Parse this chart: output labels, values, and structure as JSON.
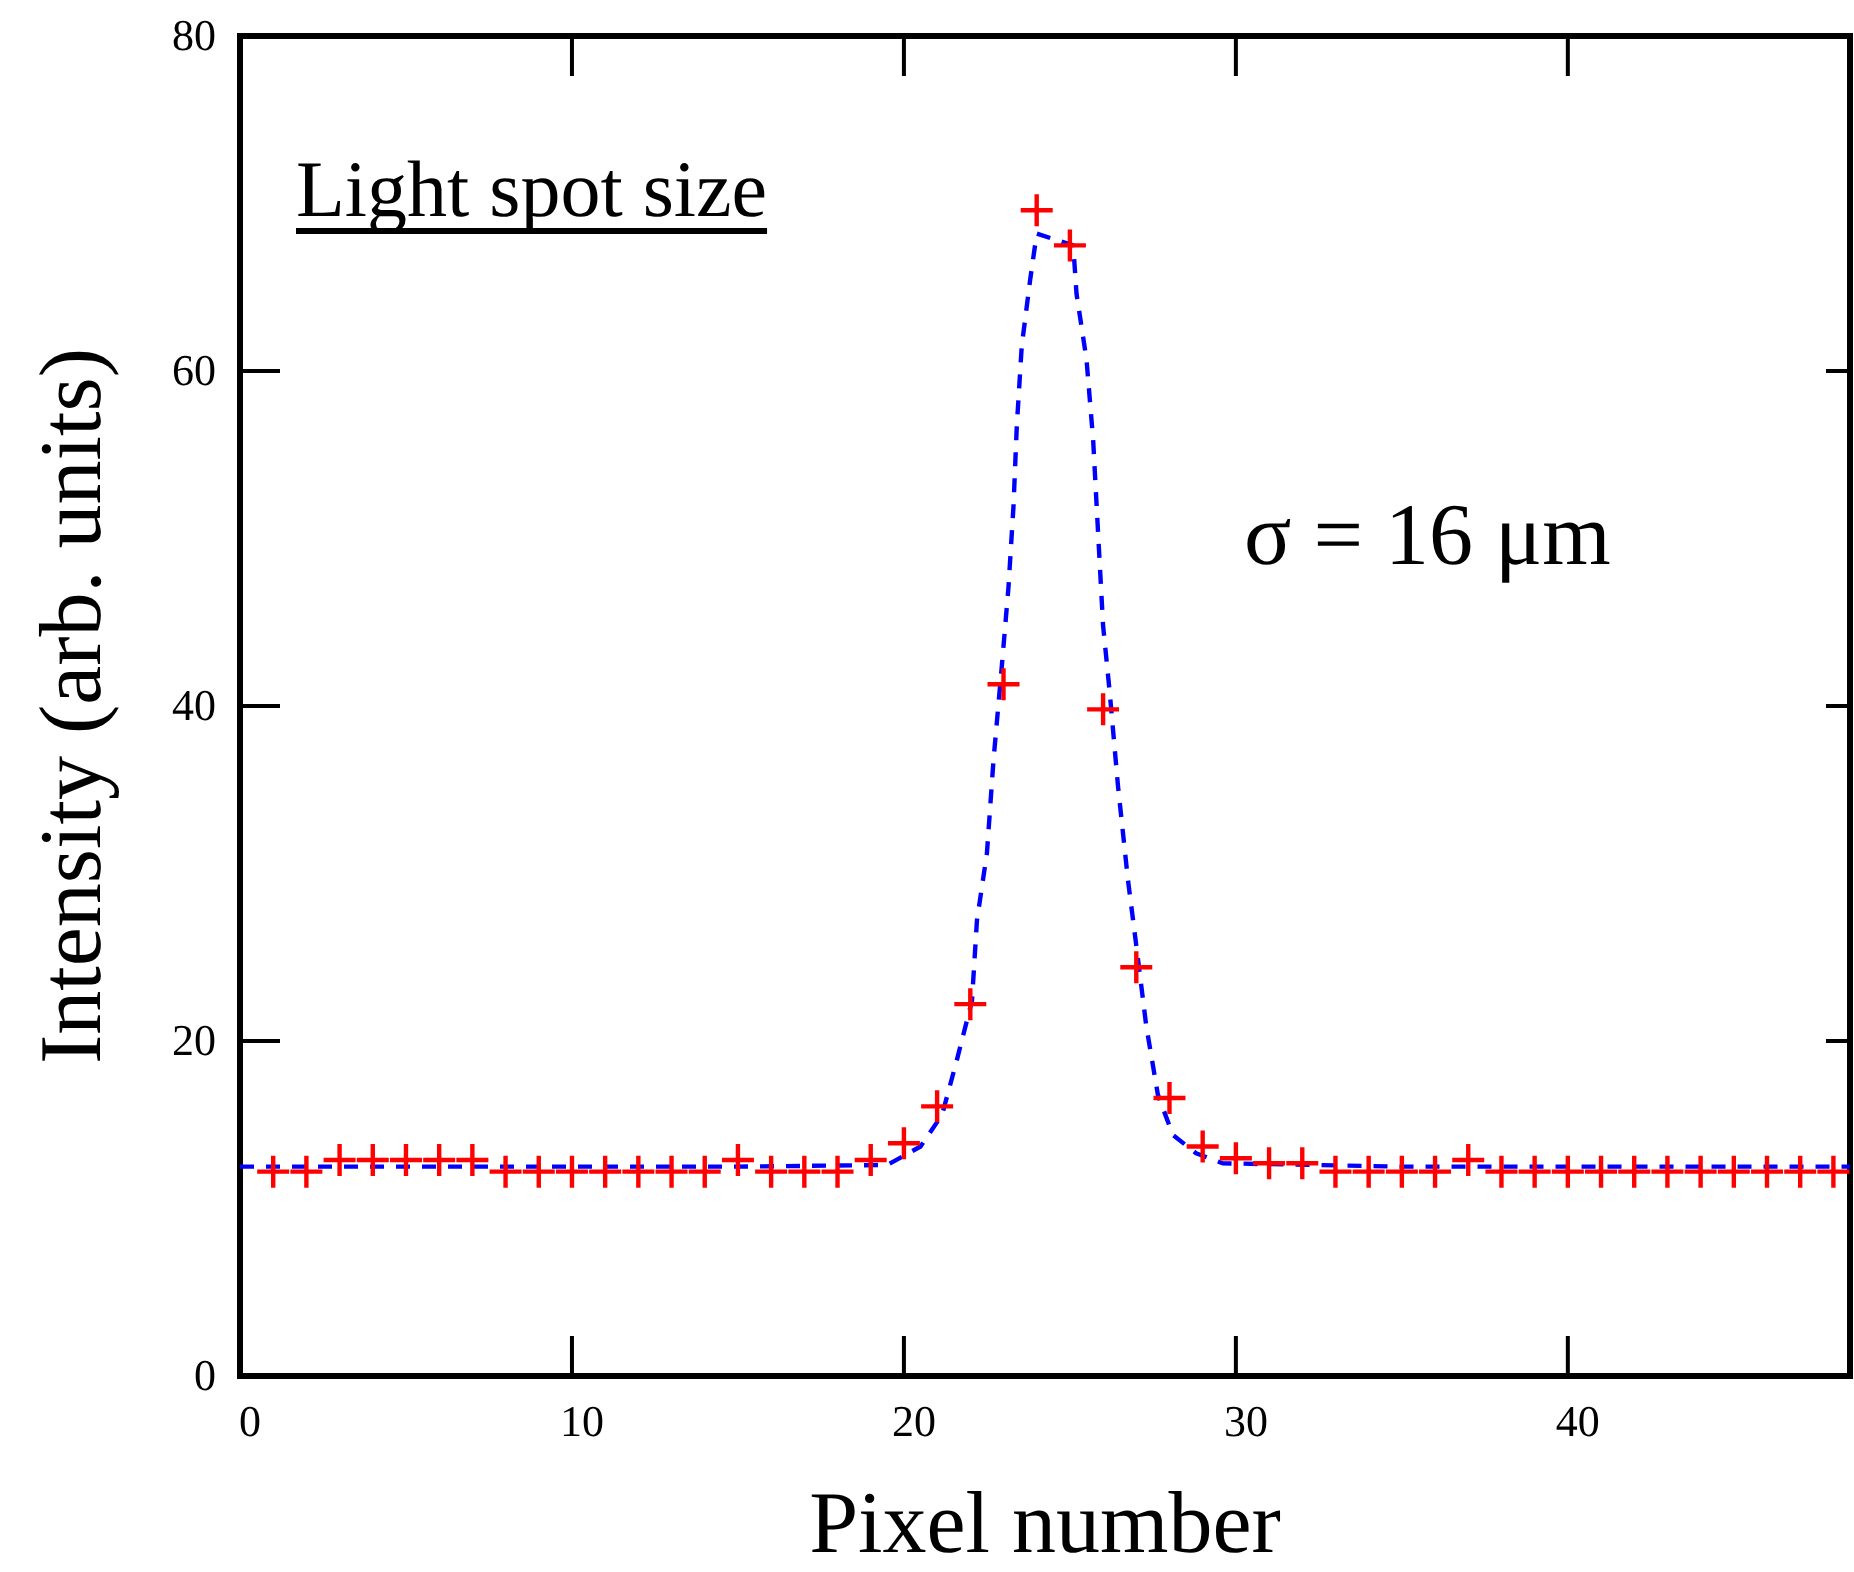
{
  "chart_data": {
    "type": "scatter",
    "title": "Light spot size",
    "xlabel": "Pixel number",
    "ylabel": "Intensity (arb. units)",
    "annotations": [
      "σ = 16 μm"
    ],
    "xlim": [
      0,
      48.5
    ],
    "xticks": [
      0,
      10,
      20,
      30,
      40
    ],
    "ylim": [
      0,
      80
    ],
    "yticks": [
      0,
      20,
      40,
      60,
      80
    ],
    "series": [
      {
        "type": "line",
        "color": "#0000ff",
        "line_style": "dashed",
        "marker": "none",
        "x": [
          0,
          5,
          10,
          15,
          19.5,
          20.5,
          21.15,
          21.6,
          22.05,
          22.2,
          22.5,
          22.7,
          22.95,
          23.15,
          23.3,
          23.4,
          23.55,
          23.8,
          24.0,
          25.1,
          25.2,
          25.5,
          25.7,
          25.85,
          26.0,
          26.2,
          26.45,
          26.75,
          27.0,
          27.3,
          27.65,
          28.1,
          28.8,
          29.6,
          35,
          40,
          48.5
        ],
        "values": [
          12.5,
          12.5,
          12.5,
          12.5,
          12.6,
          13.7,
          15.6,
          18.9,
          22.4,
          27.2,
          31.2,
          36.8,
          42.4,
          47.1,
          51.9,
          56.7,
          61.5,
          65.4,
          68.2,
          67.5,
          64.6,
          60.7,
          55.9,
          50.3,
          44.8,
          40.8,
          35.2,
          29.6,
          25.7,
          20.9,
          16.8,
          14.4,
          13.3,
          12.7,
          12.5,
          12.5,
          12.5
        ]
      },
      {
        "color": "#ff0000",
        "marker": "cross",
        "x": [
          1,
          2,
          3,
          4,
          5,
          6,
          7,
          8,
          9,
          10,
          11,
          12,
          13,
          14,
          15,
          16,
          17,
          18,
          19,
          20,
          21,
          22,
          23,
          24,
          25,
          26,
          27,
          28,
          29,
          30,
          31,
          32,
          33,
          34,
          35,
          36,
          37,
          38,
          39,
          40,
          41,
          42,
          43,
          44,
          45,
          46,
          47,
          48
        ],
        "values": [
          12.2,
          12.2,
          12.9,
          12.9,
          12.9,
          12.9,
          12.9,
          12.2,
          12.2,
          12.2,
          12.2,
          12.2,
          12.2,
          12.2,
          12.9,
          12.2,
          12.2,
          12.2,
          12.9,
          13.9,
          16.1,
          22.2,
          41.3,
          69.6,
          67.5,
          39.8,
          24.4,
          16.6,
          13.7,
          13.0,
          12.7,
          12.7,
          12.2,
          12.2,
          12.2,
          12.2,
          12.9,
          12.2,
          12.2,
          12.2,
          12.2,
          12.2,
          12.2,
          12.2,
          12.2,
          12.2,
          12.2,
          12.2
        ]
      }
    ]
  }
}
